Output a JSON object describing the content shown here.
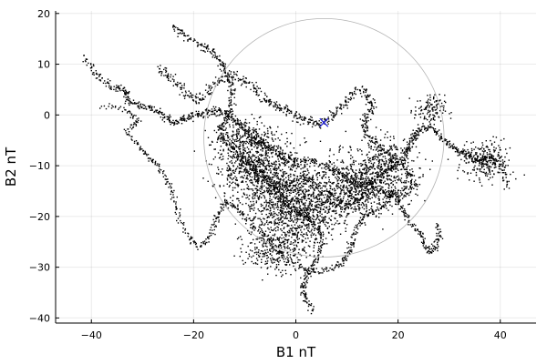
{
  "chart_data": {
    "type": "scatter",
    "xlabel": "B1 nT",
    "ylabel": "B2 nT",
    "xlim": [
      -47,
      47
    ],
    "ylim": [
      -41,
      20.5
    ],
    "xticks": [
      -40,
      -20,
      0,
      20,
      40
    ],
    "yticks": [
      -40,
      -30,
      -20,
      -10,
      0,
      10,
      20
    ],
    "xtick_labels": [
      "−40",
      "−20",
      "0",
      "20",
      "40"
    ],
    "ytick_labels": [
      "−40",
      "−30",
      "−20",
      "−10",
      "0",
      "10",
      "20"
    ],
    "grid": true,
    "legend": "none",
    "series": [
      {
        "kind": "trajectory-dots",
        "color": "#000000",
        "path": [
          [
            -41.5,
            11.5
          ],
          [
            -39,
            8
          ],
          [
            -36,
            5.5
          ],
          [
            -33.5,
            5
          ],
          [
            -33,
            3
          ],
          [
            -31,
            2
          ],
          [
            -28,
            1.5
          ],
          [
            -26,
            0
          ],
          [
            -24,
            -1.5
          ],
          [
            -22,
            -0.5
          ],
          [
            -20,
            0
          ],
          [
            -18,
            0.5
          ],
          [
            -16,
            1
          ],
          [
            -14,
            0.5
          ],
          [
            -12,
            -1
          ],
          [
            -10,
            -3
          ],
          [
            -8,
            -5
          ],
          [
            -6,
            -6
          ],
          [
            -4,
            -7
          ],
          [
            -2,
            -8.5
          ],
          [
            0,
            -9
          ],
          [
            3,
            -9
          ],
          [
            6,
            -10
          ],
          [
            9,
            -12
          ],
          [
            12,
            -14
          ],
          [
            15,
            -13
          ],
          [
            17,
            -11
          ],
          [
            19,
            -10
          ],
          [
            21,
            -8
          ],
          [
            22,
            -6
          ],
          [
            23,
            -4
          ],
          [
            24,
            -3
          ],
          [
            26,
            -2
          ],
          [
            28,
            -4
          ],
          [
            30,
            -6
          ],
          [
            32,
            -7
          ],
          [
            34,
            -8
          ],
          [
            36,
            -9
          ],
          [
            38,
            -8
          ],
          [
            40,
            -10
          ],
          [
            41.5,
            -14.5
          ]
        ],
        "path2": [
          [
            -24,
            17.5
          ],
          [
            -22,
            16
          ],
          [
            -19,
            14
          ],
          [
            -17,
            13
          ],
          [
            -15,
            11
          ],
          [
            -14,
            9
          ],
          [
            -13,
            7
          ],
          [
            -12.5,
            4
          ],
          [
            -13,
            1
          ],
          [
            -14,
            -1
          ],
          [
            -15,
            -3
          ],
          [
            -14,
            -5
          ],
          [
            -12,
            -7
          ],
          [
            -10,
            -9
          ],
          [
            -8,
            -11
          ],
          [
            -6,
            -13
          ],
          [
            -4,
            -15
          ],
          [
            -2,
            -17
          ],
          [
            0,
            -19
          ],
          [
            2,
            -20
          ],
          [
            4,
            -22
          ],
          [
            5,
            -25
          ],
          [
            4,
            -28
          ],
          [
            3,
            -30
          ],
          [
            2,
            -32
          ],
          [
            1,
            -34
          ],
          [
            2,
            -36
          ],
          [
            3,
            -38.5
          ]
        ],
        "path3": [
          [
            -38,
            2
          ],
          [
            -33,
            1
          ],
          [
            -31,
            -1
          ],
          [
            -33,
            -3
          ],
          [
            -31,
            -6
          ],
          [
            -29,
            -8
          ],
          [
            -27,
            -10
          ],
          [
            -25,
            -13
          ],
          [
            -24,
            -16
          ],
          [
            -23,
            -20
          ],
          [
            -21,
            -24
          ],
          [
            -19,
            -26
          ],
          [
            -17,
            -24
          ],
          [
            -16,
            -21
          ],
          [
            -15,
            -19
          ],
          [
            -14,
            -17
          ],
          [
            -12,
            -18
          ],
          [
            -10,
            -20
          ],
          [
            -8,
            -22
          ],
          [
            -6,
            -24
          ],
          [
            -4,
            -26
          ],
          [
            -2,
            -28
          ],
          [
            1,
            -30
          ],
          [
            4,
            -31
          ],
          [
            7,
            -30
          ],
          [
            9,
            -29
          ],
          [
            10,
            -27
          ],
          [
            11,
            -25
          ],
          [
            12,
            -22
          ],
          [
            13,
            -20
          ],
          [
            15,
            -19
          ],
          [
            17,
            -18
          ],
          [
            18,
            -16
          ],
          [
            19,
            -15
          ],
          [
            20,
            -17
          ],
          [
            21,
            -19
          ],
          [
            22,
            -21
          ],
          [
            24,
            -23
          ],
          [
            25,
            -25
          ],
          [
            26,
            -27
          ],
          [
            27,
            -26
          ],
          [
            28,
            -24
          ],
          [
            27.5,
            -21
          ]
        ],
        "path4": [
          [
            -27,
            9
          ],
          [
            -25,
            8
          ],
          [
            -23,
            6
          ],
          [
            -21,
            4
          ],
          [
            -19,
            3
          ],
          [
            -17,
            5
          ],
          [
            -15,
            7
          ],
          [
            -13,
            8
          ],
          [
            -10,
            7
          ],
          [
            -8,
            5
          ],
          [
            -6,
            3
          ],
          [
            -4,
            2
          ],
          [
            -2,
            1
          ],
          [
            0,
            0
          ],
          [
            2,
            -1
          ],
          [
            4,
            -2
          ],
          [
            6,
            -1
          ],
          [
            8,
            1
          ],
          [
            10,
            3
          ],
          [
            12,
            5
          ],
          [
            14,
            4
          ],
          [
            15,
            2
          ],
          [
            14,
            0
          ],
          [
            13,
            -2
          ],
          [
            14,
            -4
          ],
          [
            16,
            -6
          ],
          [
            18,
            -8
          ],
          [
            20,
            -9
          ],
          [
            22,
            -11
          ],
          [
            23,
            -13
          ],
          [
            22,
            -15
          ],
          [
            20,
            -16
          ],
          [
            17,
            -15
          ],
          [
            15,
            -14
          ],
          [
            13,
            -16
          ],
          [
            11,
            -17
          ],
          [
            9,
            -18
          ],
          [
            7,
            -17
          ],
          [
            5,
            -15
          ],
          [
            3,
            -13
          ],
          [
            1,
            -12
          ],
          [
            -1,
            -13
          ],
          [
            -3,
            -14
          ],
          [
            -5,
            -13
          ],
          [
            -7,
            -11
          ],
          [
            -9,
            -10
          ],
          [
            -11,
            -9
          ]
        ]
      },
      {
        "kind": "circle",
        "color": "#b4b4b4",
        "center": [
          5.5,
          -4.5
        ],
        "radius": 23.5
      },
      {
        "kind": "marker-x",
        "color": "#1f1fd6",
        "point": [
          5.5,
          -1.5
        ]
      }
    ]
  }
}
